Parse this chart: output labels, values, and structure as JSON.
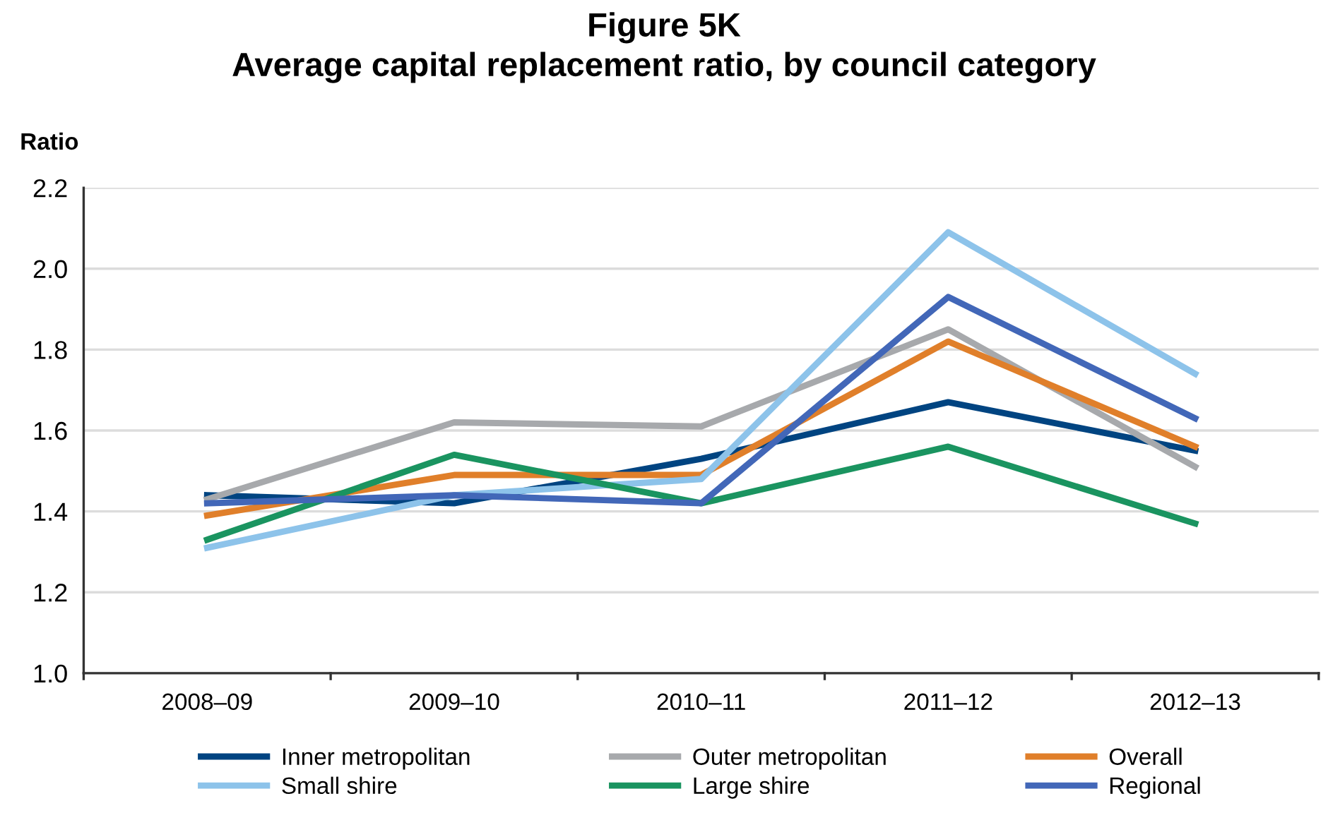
{
  "chart_data": {
    "type": "line",
    "title": "Figure 5K\nAverage capital replacement ratio, by council category",
    "ylabel": "Ratio",
    "categories": [
      "2008–09",
      "2009–10",
      "2010–11",
      "2011–12",
      "2012–13"
    ],
    "series": [
      {
        "name": "Inner metropolitan",
        "color": "#004481",
        "values": [
          1.44,
          1.42,
          1.53,
          1.67,
          1.55
        ]
      },
      {
        "name": "Outer metropolitan",
        "color": "#a7a9ac",
        "values": [
          1.43,
          1.62,
          1.61,
          1.85,
          1.51
        ]
      },
      {
        "name": "Overall",
        "color": "#e07f2a",
        "values": [
          1.39,
          1.49,
          1.49,
          1.82,
          1.56
        ]
      },
      {
        "name": "Small shire",
        "color": "#8dc3ea",
        "values": [
          1.31,
          1.44,
          1.48,
          2.09,
          1.74
        ]
      },
      {
        "name": "Large shire",
        "color": "#1a9460",
        "values": [
          1.33,
          1.54,
          1.42,
          1.56,
          1.37
        ]
      },
      {
        "name": "Regional",
        "color": "#4267b8",
        "values": [
          1.42,
          1.44,
          1.42,
          1.93,
          1.63
        ]
      }
    ],
    "ylim": [
      1.0,
      2.2
    ],
    "yticks": [
      {
        "value": 1.0,
        "label": "1.0"
      },
      1.2,
      1.4,
      1.6,
      1.8,
      {
        "value": 2.0,
        "label": "2.0"
      },
      2.2
    ],
    "grid": "y",
    "legend": "bottom",
    "marker": "none",
    "line_style": "solid"
  }
}
